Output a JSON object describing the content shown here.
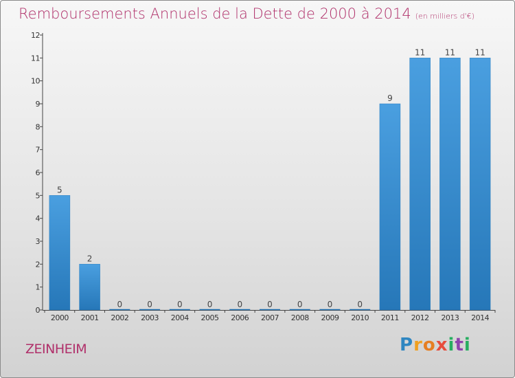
{
  "title": "Remboursements Annuels de la Dette de 2000 à 2014",
  "subtitle": "(en milliers d'€)",
  "commune": "ZEINHEIM",
  "logo": {
    "text": "Proxiti",
    "letters": [
      {
        "ch": "P",
        "color": "#2e86c1"
      },
      {
        "ch": "r",
        "color": "#f0a020"
      },
      {
        "ch": "o",
        "color": "#e67e22"
      },
      {
        "ch": "x",
        "color": "#e74c3c"
      },
      {
        "ch": "i",
        "color": "#27ae60"
      },
      {
        "ch": "t",
        "color": "#8e44ad"
      },
      {
        "ch": "i",
        "color": "#27ae60"
      }
    ]
  },
  "chart_data": {
    "type": "bar",
    "categories": [
      "2000",
      "2001",
      "2002",
      "2003",
      "2004",
      "2005",
      "2006",
      "2007",
      "2008",
      "2009",
      "2010",
      "2011",
      "2012",
      "2013",
      "2014"
    ],
    "values": [
      5,
      2,
      0,
      0,
      0,
      0,
      0,
      0,
      0,
      0,
      0,
      9,
      11,
      11,
      11
    ],
    "value_labels": [
      "5",
      "2",
      "0",
      "0",
      "0",
      "0",
      "0",
      "0",
      "0",
      "0",
      "0",
      "9",
      "11",
      "11",
      "11"
    ],
    "yticks": [
      0,
      1,
      2,
      3,
      4,
      5,
      6,
      7,
      8,
      9,
      10,
      11,
      12
    ],
    "ylim": [
      0,
      12
    ],
    "grid": false,
    "bar_color": "#4a9fe0",
    "bar_color_dark": "#2677b8"
  }
}
